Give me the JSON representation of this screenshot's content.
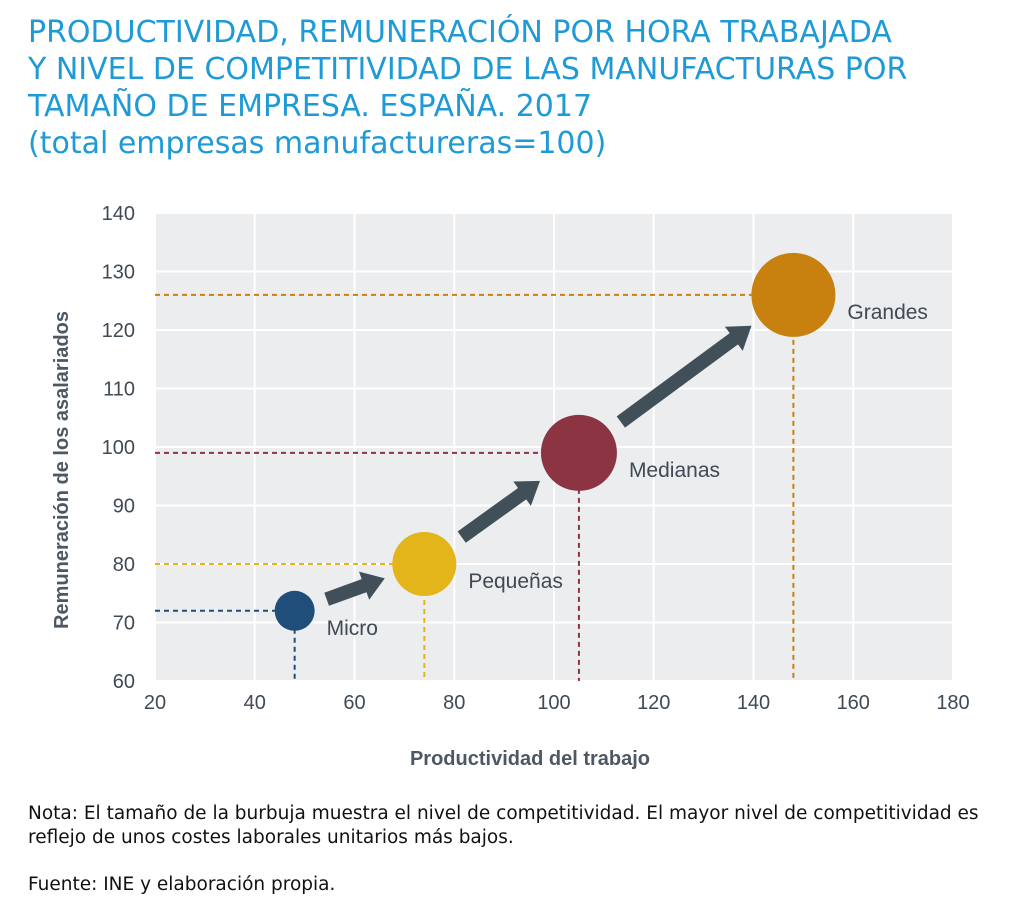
{
  "title_lines": [
    "PRODUCTIVIDAD, REMUNERACIÓN POR HORA TRABAJADA",
    "Y NIVEL DE COMPETITIVIDAD DE LAS MANUFACTURAS POR",
    "TAMAÑO DE EMPRESA. ESPAÑA. 2017",
    "(total empresas manufactureras=100)"
  ],
  "note": "Nota: El tamaño de la burbuja muestra el nivel de competitividad. El mayor nivel de competitividad es reflejo de unos costes laborales unitarios más bajos.",
  "source": "Fuente: INE y elaboración propia.",
  "chart_data": {
    "type": "scatter",
    "subtype": "bubble",
    "xlabel": "Productividad del trabajo",
    "ylabel": "Remuneración de los asalariados",
    "xlim": [
      20,
      180
    ],
    "ylim": [
      60,
      140
    ],
    "xticks": [
      20,
      40,
      60,
      80,
      100,
      120,
      140,
      160,
      180
    ],
    "yticks": [
      60,
      70,
      80,
      90,
      100,
      110,
      120,
      130,
      140
    ],
    "grid": true,
    "points": [
      {
        "label": "Micro",
        "x": 48,
        "y": 72,
        "size": 1,
        "color": "#1f4e7a"
      },
      {
        "label": "Pequeñas",
        "x": 74,
        "y": 80,
        "size": 1.6,
        "color": "#e3b51a"
      },
      {
        "label": "Medianas",
        "x": 105,
        "y": 99,
        "size": 1.9,
        "color": "#8c3442"
      },
      {
        "label": "Grandes",
        "x": 148,
        "y": 126,
        "size": 2.1,
        "color": "#c8800f"
      }
    ],
    "arrow_color": "#414f59",
    "plot_bg": "#ebedef"
  }
}
